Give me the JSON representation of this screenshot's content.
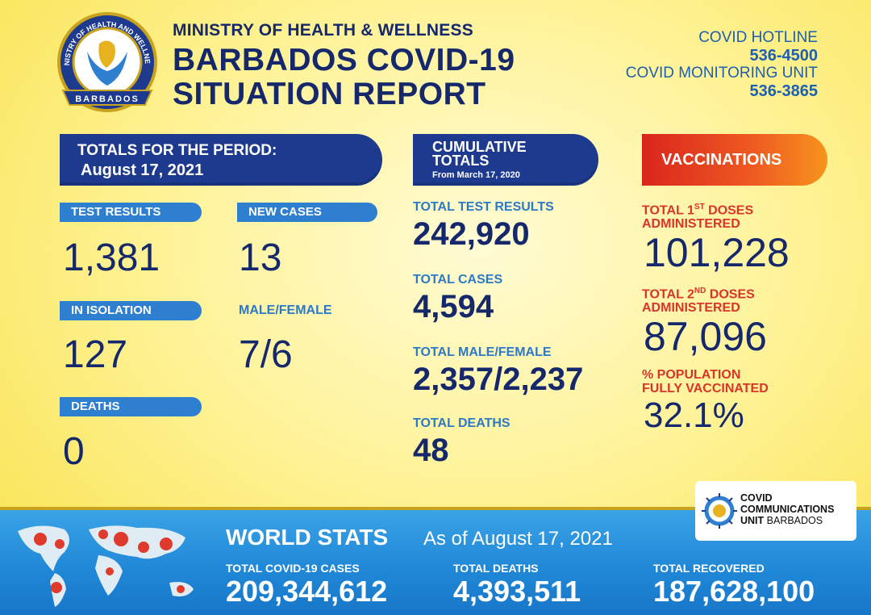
{
  "header": {
    "logo_text_top": "MINISTRY OF HEALTH AND WELLNESS",
    "logo_text_bottom": "BARBADOS",
    "ministry": "MINISTRY OF HEALTH & WELLNESS",
    "title_line1": "BARBADOS COVID-19",
    "title_line2": "SITUATION REPORT",
    "hotline_label": "COVID HOTLINE",
    "hotline_number": "536-4500",
    "monitoring_label": "COVID MONITORING UNIT",
    "monitoring_number": "536-3865"
  },
  "period": {
    "heading": "TOTALS FOR THE PERIOD:",
    "date": "August 17, 2021",
    "test_results_label": "TEST RESULTS",
    "test_results": "1,381",
    "new_cases_label": "NEW CASES",
    "new_cases": "13",
    "isolation_label": "IN ISOLATION",
    "isolation": "127",
    "male_female_label": "MALE/FEMALE",
    "male_female": "7/6",
    "deaths_label": "DEATHS",
    "deaths": "0"
  },
  "cumulative": {
    "heading_line1": "CUMULATIVE",
    "heading_line2": "TOTALS",
    "since": "From March 17, 2020",
    "tests_label": "TOTAL TEST RESULTS",
    "tests": "242,920",
    "cases_label": "TOTAL CASES",
    "cases": "4,594",
    "mf_label": "TOTAL MALE/FEMALE",
    "mf": "2,357/2,237",
    "deaths_label": "TOTAL DEATHS",
    "deaths": "48"
  },
  "vaccinations": {
    "heading": "VACCINATIONS",
    "first_label_a": "TOTAL 1",
    "first_label_sup": "ST",
    "first_label_b": " DOSES",
    "first_label_c": "ADMINISTERED",
    "first": "101,228",
    "second_label_a": "TOTAL 2",
    "second_label_sup": "ND",
    "second_label_b": " DOSES",
    "second_label_c": "ADMINISTERED",
    "second": "87,096",
    "pct_label_a": "% POPULATION",
    "pct_label_b": "FULLY VACCINATED",
    "pct": "32.1%"
  },
  "world": {
    "title": "WORLD STATS",
    "date": "As of August 17, 2021",
    "cases_label": "TOTAL COVID-19 CASES",
    "cases": "209,344,612",
    "deaths_label": "TOTAL DEATHS",
    "deaths": "4,393,511",
    "recovered_label": "TOTAL RECOVERED",
    "recovered": "187,628,100"
  },
  "ccu": {
    "line1": "COVID",
    "line2": "COMMUNICATIONS",
    "line3a": "UNIT",
    "line3b": " BARBADOS"
  },
  "colors": {
    "navy": "#14286b",
    "blue": "#2c79c7",
    "red": "#d8352a",
    "banner": "#1d3a8f"
  }
}
